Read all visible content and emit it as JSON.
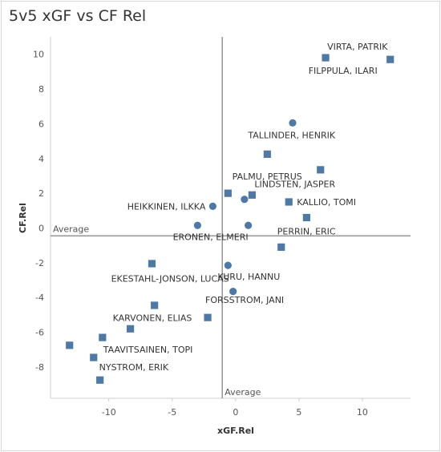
{
  "title": "5v5 xGF vs CF Rel",
  "colors": {
    "marker": "#4e79a7",
    "refline": "#9a9a9a",
    "grid": "#ececec",
    "axis": "#cfcfcf"
  },
  "chart_data": {
    "type": "scatter",
    "title": "5v5 xGF vs CF Rel",
    "xlabel": "xGF.Rel",
    "ylabel": "CF.Rel",
    "xlim": [
      -14.6,
      13.8
    ],
    "ylim": [
      -9.8,
      11.0
    ],
    "x_ticks": [
      -10,
      -5,
      0,
      5,
      10
    ],
    "y_ticks": [
      -8,
      -6,
      -4,
      -2,
      0,
      2,
      4,
      6,
      8,
      10
    ],
    "grid": false,
    "reference_lines": {
      "x_value": -1.05,
      "y_value": -0.45,
      "x_label": "Average",
      "y_label": "Average"
    },
    "shape_legend": false,
    "points": [
      {
        "name": "VIRTA, PATRIK",
        "x": 7.1,
        "y": 9.8,
        "shape": "square",
        "label": "VIRTA, PATRIK"
      },
      {
        "name": "FILPPULA, ILARI",
        "x": 12.2,
        "y": 9.7,
        "shape": "square",
        "label": "FILPPULA, ILARI"
      },
      {
        "name": "",
        "x": 4.5,
        "y": 6.05,
        "shape": "circle",
        "label": ""
      },
      {
        "name": "TALLINDER, HENRIK",
        "x": 2.5,
        "y": 4.25,
        "shape": "square",
        "label": "TALLINDER, HENRIK"
      },
      {
        "name": "PALMU, PETRUS",
        "x": 6.7,
        "y": 3.35,
        "shape": "square",
        "label": "PALMU, PETRUS"
      },
      {
        "name": "",
        "x": -0.6,
        "y": 2.0,
        "shape": "square",
        "label": ""
      },
      {
        "name": "LINDSTEN, JASPER",
        "x": 1.3,
        "y": 1.9,
        "shape": "square",
        "label": "LINDSTEN, JASPER"
      },
      {
        "name": "",
        "x": 0.7,
        "y": 1.65,
        "shape": "circle",
        "label": ""
      },
      {
        "name": "KALLIO, TOMI",
        "x": 4.2,
        "y": 1.5,
        "shape": "square",
        "label": "KALLIO, TOMI"
      },
      {
        "name": "HEIKKINEN, ILKKA",
        "x": -1.8,
        "y": 1.25,
        "shape": "circle",
        "label": "HEIKKINEN, ILKKA"
      },
      {
        "name": "",
        "x": 5.6,
        "y": 0.6,
        "shape": "square",
        "label": ""
      },
      {
        "name": "",
        "x": -3.0,
        "y": 0.15,
        "shape": "circle",
        "label": ""
      },
      {
        "name": "ERONEN, ELMERI",
        "x": 1.0,
        "y": 0.15,
        "shape": "circle",
        "label": "ERONEN, ELMERI"
      },
      {
        "name": "PERRIN, ERIC",
        "x": 3.6,
        "y": -1.1,
        "shape": "square",
        "label": "PERRIN, ERIC"
      },
      {
        "name": "",
        "x": -6.6,
        "y": -2.05,
        "shape": "square",
        "label": ""
      },
      {
        "name": "KURU, HANNU",
        "x": -0.6,
        "y": -2.15,
        "shape": "circle",
        "label": "KURU, HANNU"
      },
      {
        "name": "EKESTAHL-JONSON, LUCAS",
        "x": -0.2,
        "y": -3.65,
        "shape": "circle",
        "label": "EKESTAHL-JONSON, LUCAS"
      },
      {
        "name": "",
        "x": -6.4,
        "y": -4.45,
        "shape": "square",
        "label": ""
      },
      {
        "name": "FORSSTROM, JANI",
        "x": -2.2,
        "y": -5.15,
        "shape": "square",
        "label": "FORSSTROM, JANI"
      },
      {
        "name": "KARVONEN, ELIAS",
        "x": -8.3,
        "y": -5.8,
        "shape": "square",
        "label": "KARVONEN, ELIAS"
      },
      {
        "name": "",
        "x": -10.5,
        "y": -6.3,
        "shape": "square",
        "label": ""
      },
      {
        "name": "",
        "x": -13.1,
        "y": -6.75,
        "shape": "square",
        "label": ""
      },
      {
        "name": "TAAVITSAINEN, TOPI",
        "x": -11.2,
        "y": -7.45,
        "shape": "square",
        "label": "TAAVITSAINEN, TOPI"
      },
      {
        "name": "NYSTROM, ERIK",
        "x": -10.7,
        "y": -8.75,
        "shape": "square",
        "label": "NYSTROM, ERIK"
      }
    ]
  }
}
